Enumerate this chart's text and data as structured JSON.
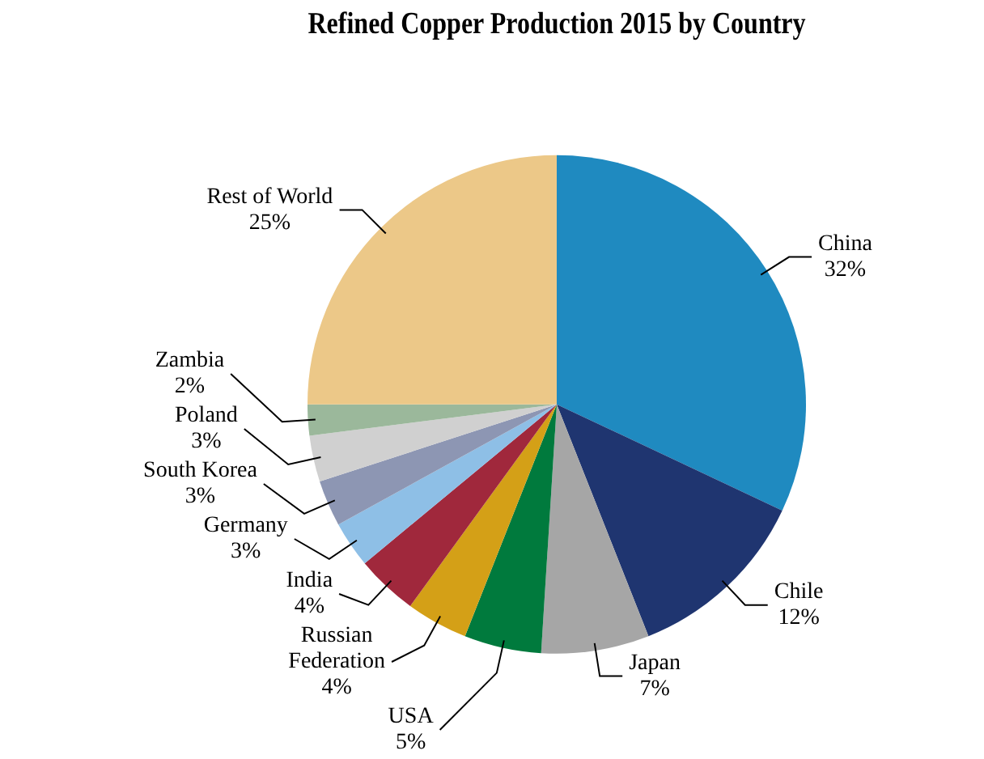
{
  "chart_data": {
    "type": "pie",
    "title": "Refined Copper Production 2015 by Country",
    "categories": [
      "China",
      "Chile",
      "Japan",
      "USA",
      "Russian Federation",
      "India",
      "Germany",
      "South Korea",
      "Poland",
      "Zambia",
      "Rest of World"
    ],
    "values": [
      32,
      12,
      7,
      5,
      4,
      4,
      3,
      3,
      3,
      2,
      25
    ],
    "colors": [
      "#1f8ac0",
      "#1f3570",
      "#a6a6a6",
      "#007a3d",
      "#d4a017",
      "#a0283c",
      "#8ebfe6",
      "#8d96b3",
      "#d0d0d0",
      "#9bb89b",
      "#ecc888"
    ],
    "value_labels": [
      "32%",
      "12%",
      "7%",
      "5%",
      "4%",
      "4%",
      "3%",
      "3%",
      "3%",
      "2%",
      "25%"
    ],
    "legend": false
  }
}
